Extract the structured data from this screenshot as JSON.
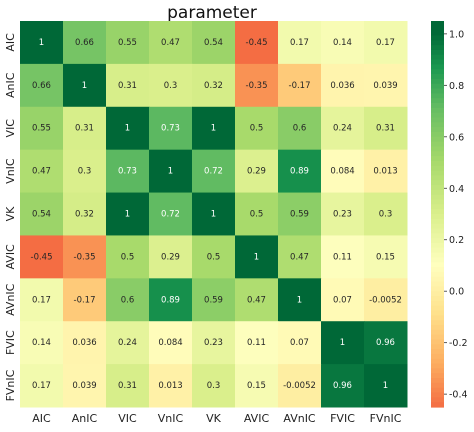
{
  "chart_data": {
    "type": "heatmap",
    "title": "parameter",
    "x_labels": [
      "AIC",
      "AnIC",
      "VIC",
      "VnIC",
      "VK",
      "AVIC",
      "AVnIC",
      "FVIC",
      "FVnIC"
    ],
    "y_labels": [
      "AIC",
      "AnIC",
      "VIC",
      "VnIC",
      "VK",
      "AVIC",
      "AVnIC",
      "FVIC",
      "FVnIC"
    ],
    "value_labels": [
      [
        "1",
        "0.66",
        "0.55",
        "0.47",
        "0.54",
        "-0.45",
        "0.17",
        "0.14",
        "0.17"
      ],
      [
        "0.66",
        "1",
        "0.31",
        "0.3",
        "0.32",
        "-0.35",
        "-0.17",
        "0.036",
        "0.039"
      ],
      [
        "0.55",
        "0.31",
        "1",
        "0.73",
        "1",
        "0.5",
        "0.6",
        "0.24",
        "0.31"
      ],
      [
        "0.47",
        "0.3",
        "0.73",
        "1",
        "0.72",
        "0.29",
        "0.89",
        "0.084",
        "0.013"
      ],
      [
        "0.54",
        "0.32",
        "1",
        "0.72",
        "1",
        "0.5",
        "0.59",
        "0.23",
        "0.3"
      ],
      [
        "-0.45",
        "-0.35",
        "0.5",
        "0.29",
        "0.5",
        "1",
        "0.47",
        "0.11",
        "0.15"
      ],
      [
        "0.17",
        "-0.17",
        "0.6",
        "0.89",
        "0.59",
        "0.47",
        "1",
        "0.07",
        "-0.0052"
      ],
      [
        "0.14",
        "0.036",
        "0.24",
        "0.084",
        "0.23",
        "0.11",
        "0.07",
        "1",
        "0.96"
      ],
      [
        "0.17",
        "0.039",
        "0.31",
        "0.013",
        "0.3",
        "0.15",
        "-0.0052",
        "0.96",
        "1"
      ]
    ],
    "colorbar": {
      "min": -0.45,
      "max": 1.0,
      "ticks": [
        "1.0",
        "0.8",
        "0.6",
        "0.4",
        "0.2",
        "0.0",
        "-0.2",
        "-0.4"
      ],
      "colormap": "RdYlGn"
    }
  }
}
